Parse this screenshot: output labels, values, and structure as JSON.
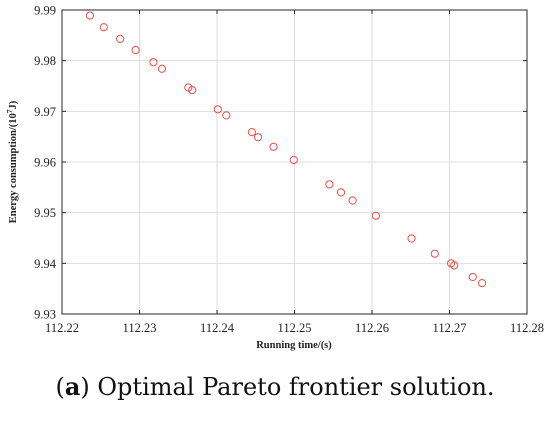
{
  "chart_data": {
    "type": "scatter",
    "title": "",
    "xlabel": "Running time/(s)",
    "ylabel_prefix": "Energy consumption/(10",
    "ylabel_exp": "7",
    "ylabel_suffix": "J)",
    "xlim": [
      112.22,
      112.28
    ],
    "ylim": [
      9.93,
      9.99
    ],
    "x_ticks": [
      "112.22",
      "112.23",
      "112.24",
      "112.25",
      "112.26",
      "112.27",
      "112.28"
    ],
    "y_ticks": [
      "9.93",
      "9.94",
      "9.95",
      "9.96",
      "9.97",
      "9.98",
      "9.99"
    ],
    "grid": true,
    "marker": "open-circle",
    "marker_color": "#e8504a",
    "series": [
      {
        "points": [
          {
            "x": 112.2236,
            "y": 9.9889
          },
          {
            "x": 112.2254,
            "y": 9.9866
          },
          {
            "x": 112.2275,
            "y": 9.9843
          },
          {
            "x": 112.2295,
            "y": 9.9821
          },
          {
            "x": 112.2318,
            "y": 9.9797
          },
          {
            "x": 112.2329,
            "y": 9.9784
          },
          {
            "x": 112.2363,
            "y": 9.9747
          },
          {
            "x": 112.2368,
            "y": 9.9742
          },
          {
            "x": 112.2401,
            "y": 9.9704
          },
          {
            "x": 112.2412,
            "y": 9.9692
          },
          {
            "x": 112.2445,
            "y": 9.9659
          },
          {
            "x": 112.2453,
            "y": 9.9649
          },
          {
            "x": 112.2473,
            "y": 9.963
          },
          {
            "x": 112.2499,
            "y": 9.9604
          },
          {
            "x": 112.2545,
            "y": 9.9556
          },
          {
            "x": 112.256,
            "y": 9.954
          },
          {
            "x": 112.2575,
            "y": 9.9524
          },
          {
            "x": 112.2605,
            "y": 9.9494
          },
          {
            "x": 112.2651,
            "y": 9.9449
          },
          {
            "x": 112.2681,
            "y": 9.9419
          },
          {
            "x": 112.2702,
            "y": 9.94
          },
          {
            "x": 112.2706,
            "y": 9.9396
          },
          {
            "x": 112.273,
            "y": 9.9373
          },
          {
            "x": 112.2742,
            "y": 9.9361
          }
        ]
      }
    ]
  },
  "caption": {
    "open": "(",
    "letter": "a",
    "text": ") Optimal Pareto frontier solution."
  }
}
